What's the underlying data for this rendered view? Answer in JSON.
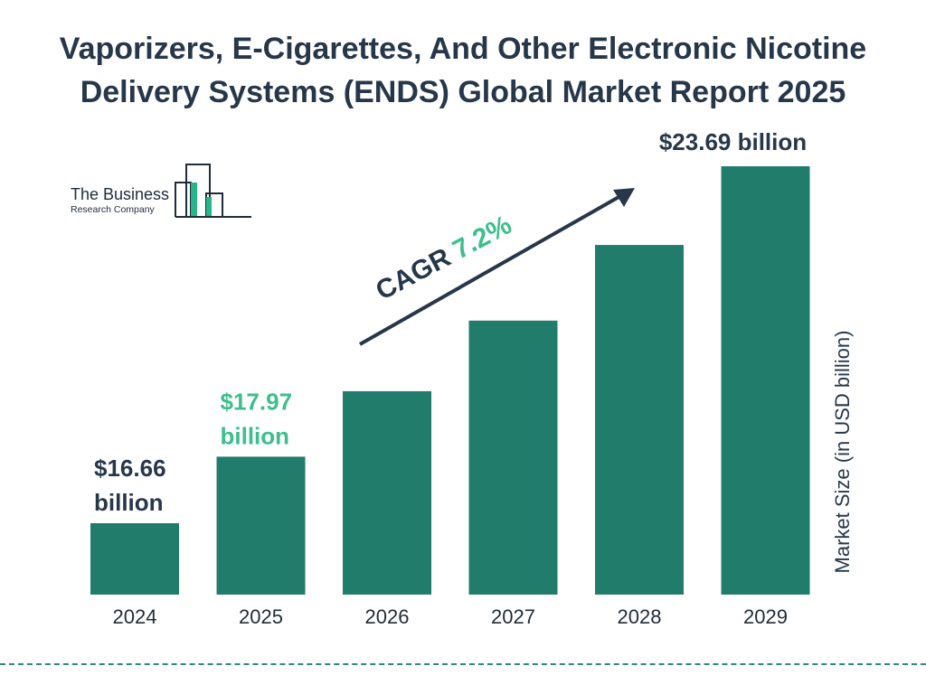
{
  "title_lines": [
    "Vaporizers, E-Cigarettes, And Other Electronic Nicotine",
    "Delivery Systems (ENDS) Global Market Report 2025"
  ],
  "logo": {
    "line1": "The Business",
    "line2": "Research Company"
  },
  "cagr": {
    "label": "CAGR",
    "value": "7.2%"
  },
  "colors": {
    "bar": "#227c6c",
    "title": "#27374a",
    "highlight": "#3dbf8c",
    "logo_accent": "#27b58a"
  },
  "chart_data": {
    "type": "bar",
    "title": "Vaporizers, E-Cigarettes, And Other Electronic Nicotine Delivery Systems (ENDS) Global Market Report 2025",
    "xlabel": "",
    "ylabel": "Market Size (in USD billion)",
    "categories": [
      "2024",
      "2025",
      "2026",
      "2027",
      "2028",
      "2029"
    ],
    "values": [
      16.66,
      17.97,
      19.26,
      20.65,
      22.14,
      23.69
    ],
    "data_labels": [
      {
        "index": 0,
        "lines": [
          "$16.66",
          "billion"
        ],
        "color": "#27374a"
      },
      {
        "index": 1,
        "lines": [
          "$17.97",
          "billion"
        ],
        "color": "#3dbf8c"
      },
      {
        "index": 5,
        "lines": [
          "$23.69 billion"
        ],
        "color": "#27374a"
      }
    ],
    "grid": false,
    "legend": "none"
  }
}
